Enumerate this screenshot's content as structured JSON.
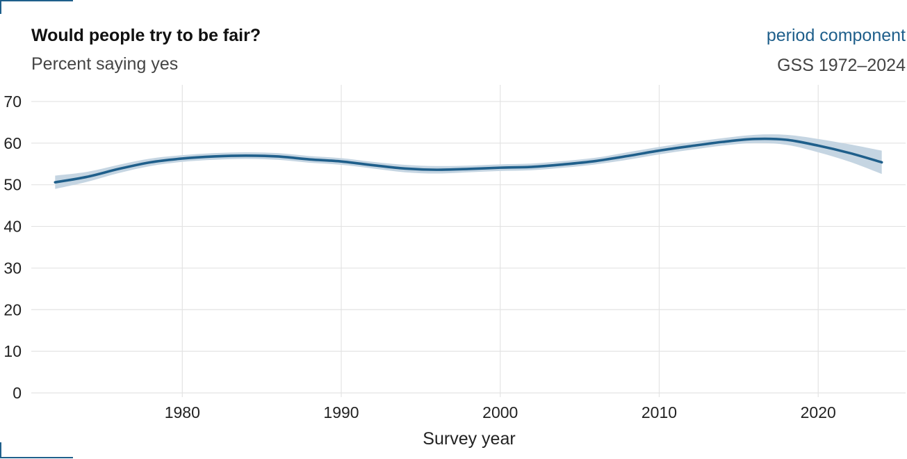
{
  "colors": {
    "accent": "#1f5f8b",
    "band": "#c5d5e2",
    "grid": "#e3e3e3",
    "corner_marks": "#1f5f8b"
  },
  "chart_data": {
    "type": "line",
    "title": "Would people try to be fair?",
    "subtitle": "Percent saying yes",
    "tag": "period component",
    "source": "GSS 1972–2024",
    "xlabel": "Survey year",
    "ylabel": "",
    "xlim": [
      1970.5,
      2025.5
    ],
    "ylim": [
      -1,
      74
    ],
    "x_ticks": [
      1980,
      1990,
      2000,
      2010,
      2020
    ],
    "y_ticks": [
      0,
      10,
      20,
      30,
      40,
      50,
      60,
      70
    ],
    "grid": true,
    "series": [
      {
        "x": [
          1972,
          1974,
          1976,
          1978,
          1980,
          1982,
          1984,
          1986,
          1988,
          1990,
          1992,
          1994,
          1996,
          1998,
          2000,
          2002,
          2004,
          2006,
          2008,
          2010,
          2012,
          2014,
          2016,
          2018,
          2020,
          2022,
          2024
        ],
        "y": [
          50.6,
          51.9,
          53.8,
          55.4,
          56.3,
          56.8,
          57.0,
          56.8,
          56.1,
          55.6,
          54.7,
          53.9,
          53.6,
          53.8,
          54.1,
          54.3,
          54.9,
          55.7,
          56.9,
          58.2,
          59.3,
          60.3,
          61.0,
          60.8,
          59.4,
          57.6,
          55.4
        ],
        "lower": [
          49.0,
          50.7,
          52.8,
          54.5,
          55.5,
          56.0,
          56.2,
          56.0,
          55.3,
          54.8,
          53.9,
          53.0,
          52.7,
          53.0,
          53.3,
          53.5,
          54.1,
          54.9,
          56.0,
          57.3,
          58.4,
          59.4,
          60.0,
          59.6,
          57.8,
          55.5,
          52.6
        ],
        "upper": [
          52.2,
          53.1,
          54.8,
          56.3,
          57.1,
          57.6,
          57.8,
          57.6,
          56.9,
          56.4,
          55.5,
          54.8,
          54.5,
          54.6,
          54.9,
          55.1,
          55.7,
          56.5,
          57.8,
          59.1,
          60.2,
          61.2,
          62.0,
          62.0,
          61.0,
          59.7,
          58.2
        ]
      }
    ]
  }
}
